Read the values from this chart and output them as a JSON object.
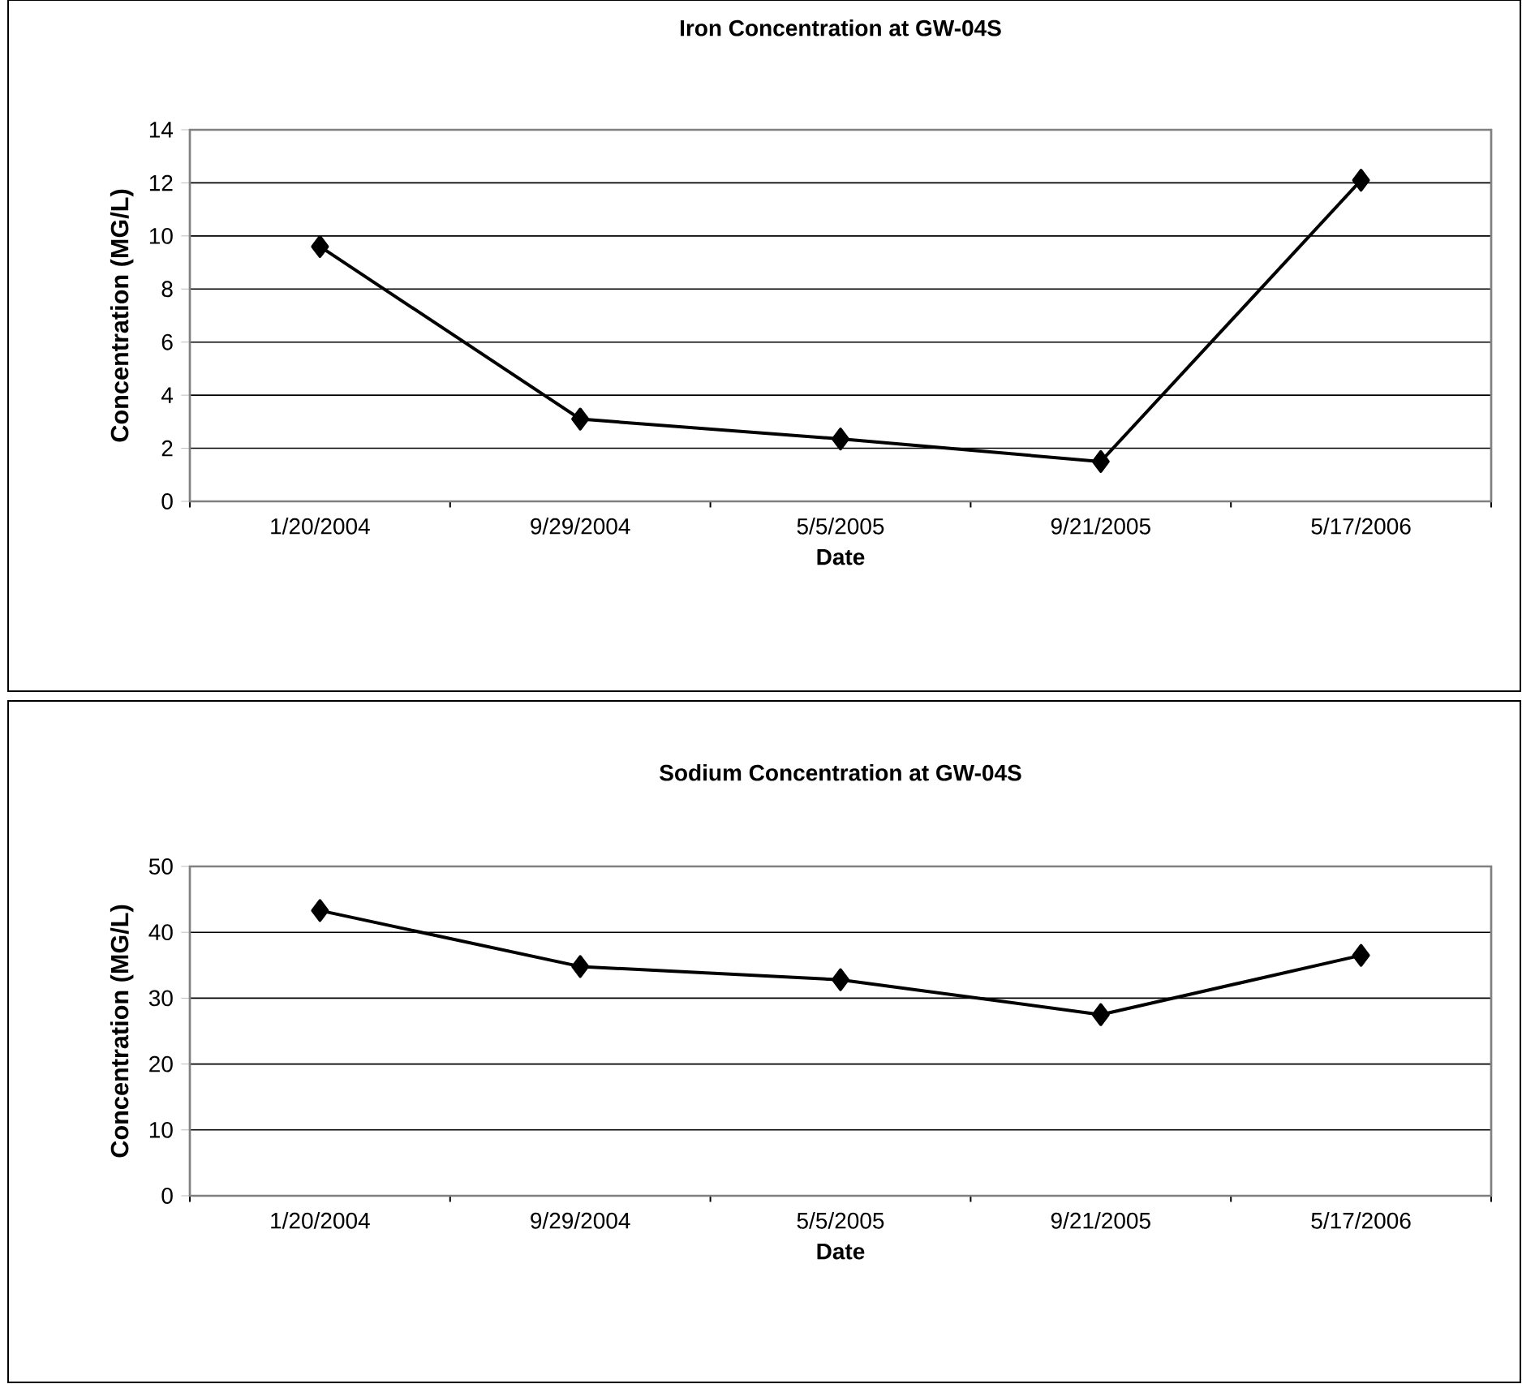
{
  "chart_data": [
    {
      "type": "line",
      "title": "Iron Concentration at GW-04S",
      "xlabel": "Date",
      "ylabel": "Concentration (MG/L)",
      "categories": [
        "1/20/2004",
        "9/29/2004",
        "5/5/2005",
        "9/21/2005",
        "5/17/2006"
      ],
      "series": [
        {
          "color": "#000000",
          "values": [
            9.6,
            3.1,
            2.35,
            1.5,
            12.1
          ]
        }
      ],
      "ylim": [
        0,
        14
      ],
      "yticks": [
        0,
        2,
        4,
        6,
        8,
        10,
        12,
        14
      ],
      "grid": "y",
      "marker": "diamond",
      "line_style": "solid"
    },
    {
      "type": "line",
      "title": "Sodium Concentration at GW-04S",
      "xlabel": "Date",
      "ylabel": "Concentration (MG/L)",
      "categories": [
        "1/20/2004",
        "9/29/2004",
        "5/5/2005",
        "9/21/2005",
        "5/17/2006"
      ],
      "series": [
        {
          "color": "#000000",
          "values": [
            43.3,
            34.8,
            32.8,
            27.5,
            36.5
          ]
        }
      ],
      "ylim": [
        0,
        50
      ],
      "yticks": [
        0,
        10,
        20,
        30,
        40,
        50
      ],
      "grid": "y",
      "marker": "diamond",
      "line_style": "solid"
    }
  ]
}
